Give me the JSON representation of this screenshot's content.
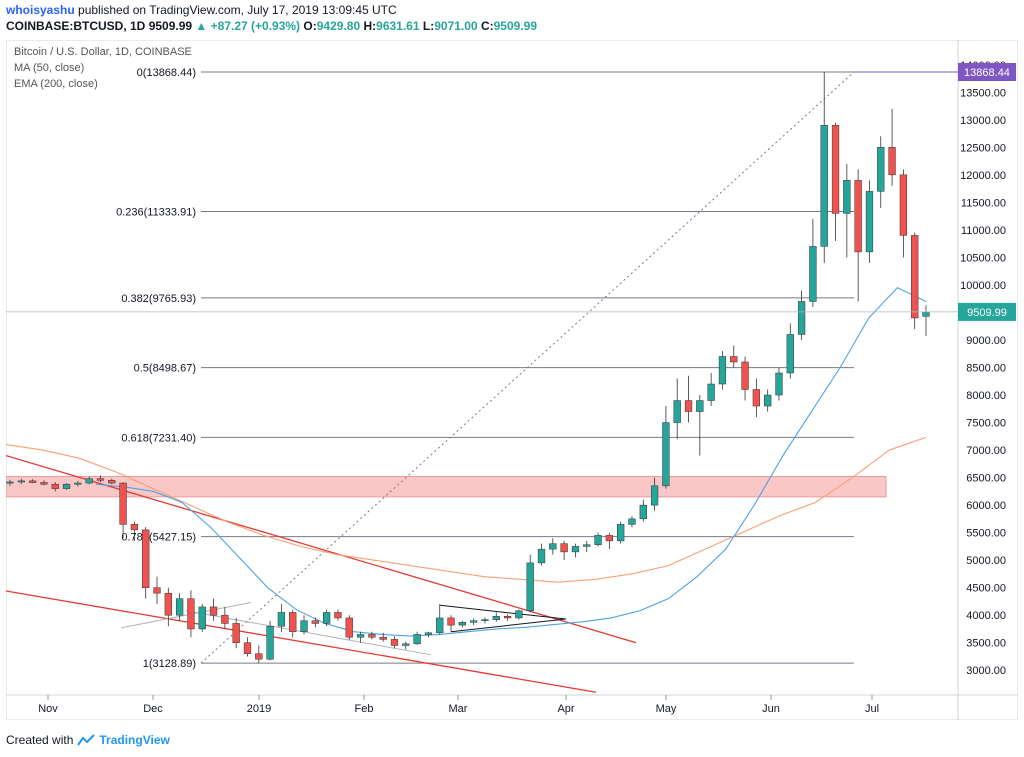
{
  "header": {
    "author": "whoisyashu",
    "published_text": "published on TradingView.com, July 17, 2019 13:09:45 UTC",
    "symbol": "COINBASE:BTCUSD, 1D",
    "last": "9509.99",
    "change": "+87.27 (+0.93%)",
    "open_label": "O:",
    "open": "9429.80",
    "high_label": "H:",
    "high": "9631.61",
    "low_label": "L:",
    "low": "9071.00",
    "close_label": "C:",
    "close": "9509.99"
  },
  "legend": {
    "title": "Bitcoin / U.S. Dollar, 1D, COINBASE",
    "ma": "MA (50, close)",
    "ema": "EMA (200, close)"
  },
  "footer": {
    "created_with": "Created with",
    "brand": "TradingView"
  },
  "colors": {
    "up": "#26a69a",
    "down": "#ef5350",
    "ma": "#4fa3e0",
    "ema": "#f7a072",
    "fib": "#787b86",
    "trend": "#e53935",
    "zone": "#f8b4b4",
    "last_price": "#26a69a",
    "high_label": "#7e57c2"
  },
  "chart_data": {
    "type": "candlestick",
    "title": "Bitcoin / U.S. Dollar, 1D, COINBASE",
    "ylim": [
      2550,
      14450
    ],
    "y_ticks": [
      3000,
      3500,
      4000,
      4500,
      5000,
      5500,
      6000,
      6500,
      7000,
      7500,
      8000,
      8500,
      9000,
      9500,
      10000,
      10500,
      11000,
      11500,
      12000,
      12500,
      13000,
      13500,
      14000
    ],
    "x_ticks": [
      "Nov",
      "Dec",
      "2019",
      "Feb",
      "Mar",
      "Apr",
      "May",
      "Jun",
      "Jul"
    ],
    "fibonacci": [
      {
        "label": "0(13868.44)",
        "value": 13868.44
      },
      {
        "label": "0.236(11333.91)",
        "value": 11333.91
      },
      {
        "label": "0.382(9765.93)",
        "value": 9765.93
      },
      {
        "label": "0.5(8498.67)",
        "value": 8498.67
      },
      {
        "label": "0.618(7231.40)",
        "value": 7231.4
      },
      {
        "label": "0.786(5427.15)",
        "value": 5427.15
      },
      {
        "label": "1(3128.89)",
        "value": 3128.89
      }
    ],
    "price_labels": {
      "high": "13868.44",
      "last": "9509.99"
    },
    "resistance_zone": [
      6150,
      6520
    ],
    "ma50": [
      6380,
      6330,
      6250,
      6050,
      5600,
      5050,
      4500,
      4100,
      3850,
      3700,
      3650,
      3620,
      3650,
      3700,
      3750,
      3780,
      3830,
      3880,
      3950,
      4080,
      4300,
      4700,
      5200,
      6000,
      6900,
      7700,
      8500,
      9400,
      9950,
      9700
    ],
    "ema200": [
      7100,
      7000,
      6850,
      6600,
      6300,
      6000,
      5700,
      5450,
      5250,
      5100,
      5000,
      4900,
      4800,
      4700,
      4650,
      4600,
      4650,
      4750,
      4900,
      5200,
      5500,
      5800,
      6050,
      6500,
      7000,
      7230
    ],
    "ohlc": [
      [
        6400,
        6460,
        6350,
        6420
      ],
      [
        6420,
        6480,
        6380,
        6440
      ],
      [
        6440,
        6470,
        6400,
        6410
      ],
      [
        6410,
        6450,
        6360,
        6380
      ],
      [
        6380,
        6420,
        6250,
        6300
      ],
      [
        6300,
        6400,
        6280,
        6380
      ],
      [
        6380,
        6440,
        6340,
        6400
      ],
      [
        6400,
        6520,
        6380,
        6480
      ],
      [
        6480,
        6540,
        6420,
        6450
      ],
      [
        6450,
        6480,
        6380,
        6400
      ],
      [
        6400,
        6420,
        5400,
        5650
      ],
      [
        5650,
        5700,
        5350,
        5550
      ],
      [
        5550,
        5600,
        4300,
        4500
      ],
      [
        4500,
        4700,
        4200,
        4400
      ],
      [
        4400,
        4500,
        3800,
        4000
      ],
      [
        4000,
        4400,
        3900,
        4300
      ],
      [
        4300,
        4450,
        3600,
        3750
      ],
      [
        3750,
        4200,
        3700,
        4150
      ],
      [
        4150,
        4300,
        3900,
        4000
      ],
      [
        4000,
        4150,
        3750,
        3850
      ],
      [
        3850,
        3950,
        3400,
        3500
      ],
      [
        3500,
        3600,
        3250,
        3300
      ],
      [
        3300,
        3450,
        3128,
        3200
      ],
      [
        3200,
        3900,
        3180,
        3800
      ],
      [
        3800,
        4200,
        3700,
        4050
      ],
      [
        4050,
        4100,
        3600,
        3700
      ],
      [
        3700,
        4000,
        3650,
        3900
      ],
      [
        3900,
        3960,
        3780,
        3850
      ],
      [
        3850,
        4100,
        3800,
        4050
      ],
      [
        4050,
        4100,
        3900,
        3950
      ],
      [
        3950,
        4000,
        3550,
        3600
      ],
      [
        3600,
        3700,
        3500,
        3650
      ],
      [
        3650,
        3700,
        3560,
        3600
      ],
      [
        3600,
        3680,
        3520,
        3560
      ],
      [
        3560,
        3620,
        3400,
        3450
      ],
      [
        3450,
        3520,
        3380,
        3480
      ],
      [
        3480,
        3700,
        3460,
        3650
      ],
      [
        3650,
        3700,
        3600,
        3680
      ],
      [
        3680,
        4200,
        3650,
        3950
      ],
      [
        3950,
        4000,
        3700,
        3820
      ],
      [
        3820,
        3900,
        3780,
        3870
      ],
      [
        3870,
        3940,
        3820,
        3900
      ],
      [
        3900,
        3960,
        3850,
        3920
      ],
      [
        3920,
        4050,
        3880,
        3980
      ],
      [
        3980,
        4020,
        3900,
        3950
      ],
      [
        3950,
        4100,
        3920,
        4080
      ],
      [
        4080,
        5100,
        4050,
        4950
      ],
      [
        4950,
        5300,
        4900,
        5200
      ],
      [
        5200,
        5400,
        5100,
        5300
      ],
      [
        5300,
        5350,
        5000,
        5150
      ],
      [
        5150,
        5300,
        5050,
        5250
      ],
      [
        5250,
        5350,
        5150,
        5280
      ],
      [
        5280,
        5500,
        5250,
        5450
      ],
      [
        5450,
        5500,
        5200,
        5350
      ],
      [
        5350,
        5700,
        5300,
        5650
      ],
      [
        5650,
        5800,
        5600,
        5750
      ],
      [
        5750,
        6100,
        5700,
        6000
      ],
      [
        6000,
        6500,
        5900,
        6350
      ],
      [
        6350,
        7800,
        6300,
        7500
      ],
      [
        7500,
        8300,
        7200,
        7900
      ],
      [
        7900,
        8350,
        7500,
        7700
      ],
      [
        7700,
        8000,
        6900,
        7900
      ],
      [
        7900,
        8400,
        7800,
        8200
      ],
      [
        8200,
        8800,
        8100,
        8700
      ],
      [
        8700,
        8900,
        8500,
        8600
      ],
      [
        8600,
        8700,
        7900,
        8100
      ],
      [
        8100,
        8300,
        7600,
        7800
      ],
      [
        7800,
        8100,
        7700,
        8000
      ],
      [
        8000,
        8500,
        7900,
        8400
      ],
      [
        8400,
        9300,
        8300,
        9100
      ],
      [
        9100,
        9900,
        9000,
        9700
      ],
      [
        9700,
        11200,
        9600,
        10700
      ],
      [
        10700,
        13868,
        10400,
        12900
      ],
      [
        12900,
        12950,
        10800,
        11300
      ],
      [
        11300,
        12200,
        10500,
        11900
      ],
      [
        11900,
        12100,
        9700,
        10600
      ],
      [
        10600,
        11900,
        10400,
        11700
      ],
      [
        11700,
        12700,
        11400,
        12500
      ],
      [
        12500,
        13200,
        11800,
        12000
      ],
      [
        12000,
        12100,
        10500,
        10900
      ],
      [
        10900,
        10950,
        9200,
        9400
      ],
      [
        9429.8,
        9631.61,
        9071,
        9509.99
      ]
    ]
  }
}
